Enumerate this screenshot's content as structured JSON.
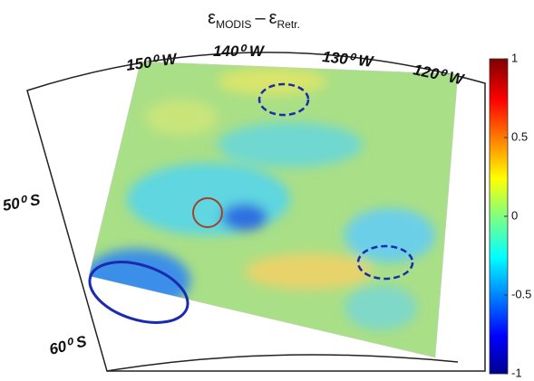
{
  "title": {
    "symbol_1": "ε",
    "sub_1": "MODIS",
    "operator": "–",
    "symbol_2": "ε",
    "sub_2": "Retr."
  },
  "longitude_labels": [
    "150⁰ W",
    "140⁰ W",
    "130⁰ W",
    "120⁰ W"
  ],
  "latitude_labels": [
    "50⁰ S",
    "60⁰ S"
  ],
  "colorbar": {
    "colormap": "jet",
    "lim": [
      -1,
      1
    ],
    "ticks": [
      1,
      0.5,
      0,
      -0.5,
      -1
    ]
  }
}
